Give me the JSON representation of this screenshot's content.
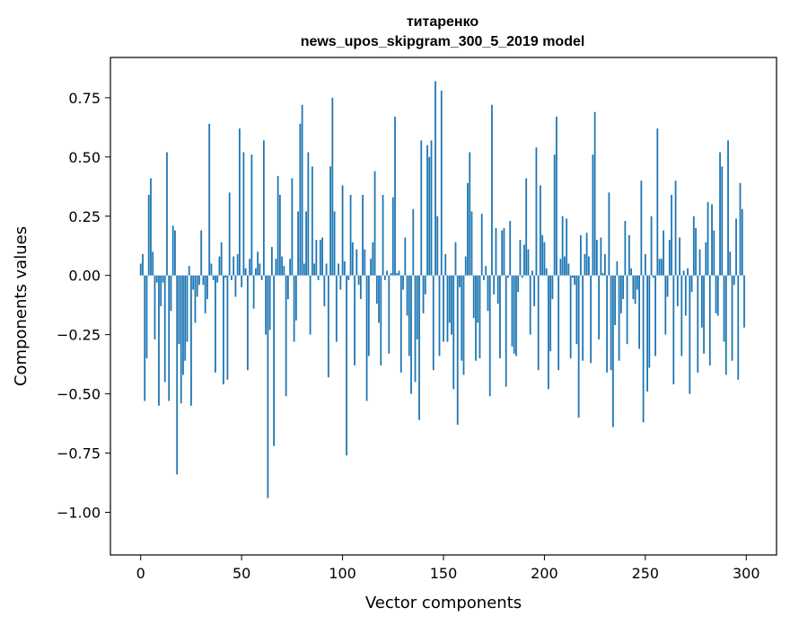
{
  "chart_data": {
    "type": "bar",
    "title_line1": "титаренко",
    "title_line2": "news_upos_skipgram_300_5_2019 model",
    "xlabel": "Vector components",
    "ylabel": "Components values",
    "xlim": [
      -15,
      315
    ],
    "ylim": [
      -1.18,
      0.92
    ],
    "xticks": [
      {
        "value": 0,
        "label": "0"
      },
      {
        "value": 50,
        "label": "50"
      },
      {
        "value": 100,
        "label": "100"
      },
      {
        "value": 150,
        "label": "150"
      },
      {
        "value": 200,
        "label": "200"
      },
      {
        "value": 250,
        "label": "250"
      },
      {
        "value": 300,
        "label": "300"
      }
    ],
    "yticks": [
      {
        "value": 0.75,
        "label": "0.75"
      },
      {
        "value": 0.5,
        "label": "0.50"
      },
      {
        "value": 0.25,
        "label": "0.25"
      },
      {
        "value": 0.0,
        "label": "0.00"
      },
      {
        "value": -0.25,
        "label": "−0.25"
      },
      {
        "value": -0.5,
        "label": "−0.50"
      },
      {
        "value": -0.75,
        "label": "−0.75"
      },
      {
        "value": -1.0,
        "label": "−1.00"
      }
    ],
    "bar_color": "#1f77b4",
    "grid": false,
    "values": [
      0.05,
      0.09,
      -0.53,
      -0.35,
      0.34,
      0.41,
      0.1,
      -0.27,
      -0.03,
      -0.55,
      -0.13,
      -0.03,
      -0.45,
      0.52,
      -0.53,
      -0.15,
      0.21,
      0.19,
      -0.84,
      -0.29,
      -0.54,
      -0.42,
      -0.36,
      -0.28,
      0.04,
      -0.55,
      -0.06,
      -0.2,
      -0.09,
      -0.04,
      0.19,
      -0.04,
      -0.16,
      -0.1,
      0.64,
      0.05,
      -0.02,
      -0.41,
      -0.03,
      0.08,
      0.14,
      -0.46,
      -0.01,
      -0.44,
      0.35,
      -0.02,
      0.08,
      -0.09,
      0.09,
      0.62,
      -0.05,
      0.52,
      0.03,
      -0.4,
      0.07,
      0.51,
      -0.14,
      0.03,
      0.1,
      0.05,
      -0.02,
      0.57,
      -0.25,
      -0.94,
      -0.23,
      0.12,
      -0.72,
      0.07,
      0.42,
      0.34,
      0.08,
      0.04,
      -0.51,
      -0.1,
      0.07,
      0.41,
      -0.28,
      -0.19,
      0.27,
      0.64,
      0.72,
      0.05,
      0.27,
      0.52,
      -0.25,
      0.46,
      0.05,
      0.15,
      -0.02,
      0.15,
      0.16,
      -0.13,
      0.05,
      -0.43,
      0.46,
      0.75,
      0.27,
      -0.28,
      0.05,
      -0.06,
      0.38,
      0.06,
      -0.76,
      -0.02,
      0.34,
      0.14,
      -0.38,
      0.11,
      -0.04,
      -0.1,
      0.34,
      0.11,
      -0.53,
      -0.34,
      0.07,
      0.14,
      0.44,
      -0.12,
      -0.2,
      -0.38,
      0.34,
      -0.02,
      0.02,
      -0.33,
      0.01,
      0.33,
      0.67,
      0.01,
      0.02,
      -0.41,
      -0.06,
      0.16,
      -0.17,
      -0.34,
      -0.5,
      0.28,
      -0.45,
      -0.27,
      -0.61,
      0.57,
      -0.16,
      -0.08,
      0.55,
      0.5,
      0.57,
      -0.4,
      0.82,
      0.25,
      -0.34,
      0.78,
      -0.28,
      0.09,
      -0.28,
      -0.2,
      -0.25,
      -0.48,
      0.14,
      -0.63,
      -0.05,
      -0.36,
      -0.42,
      0.08,
      0.39,
      0.52,
      0.27,
      -0.18,
      -0.36,
      -0.2,
      -0.35,
      0.26,
      -0.02,
      0.04,
      -0.15,
      -0.51,
      0.72,
      -0.08,
      0.2,
      -0.12,
      -0.35,
      0.19,
      0.2,
      -0.47,
      -0.01,
      0.23,
      -0.3,
      -0.33,
      -0.34,
      -0.07,
      0.15,
      -0.01,
      0.13,
      0.41,
      0.11,
      -0.25,
      0.02,
      -0.13,
      0.54,
      -0.4,
      0.38,
      0.17,
      0.14,
      0.03,
      -0.48,
      -0.32,
      -0.1,
      0.51,
      0.67,
      -0.4,
      0.07,
      0.25,
      0.08,
      0.24,
      0.05,
      -0.35,
      -0.01,
      -0.04,
      -0.29,
      -0.6,
      0.17,
      -0.36,
      0.09,
      0.18,
      0.08,
      -0.37,
      0.51,
      0.69,
      0.15,
      -0.27,
      0.16,
      0.01,
      0.09,
      -0.41,
      0.35,
      -0.4,
      -0.64,
      -0.21,
      0.06,
      -0.36,
      -0.16,
      -0.1,
      0.23,
      -0.29,
      0.17,
      0.03,
      -0.1,
      -0.12,
      -0.06,
      -0.31,
      0.4,
      -0.62,
      0.09,
      -0.49,
      -0.39,
      0.25,
      -0.01,
      -0.34,
      0.62,
      0.07,
      0.07,
      0.19,
      -0.25,
      -0.09,
      0.15,
      0.34,
      -0.46,
      0.4,
      -0.13,
      0.16,
      -0.34,
      0.02,
      -0.17,
      0.03,
      -0.5,
      -0.07,
      0.25,
      0.2,
      -0.41,
      0.11,
      -0.22,
      -0.33,
      0.14,
      0.31,
      -0.38,
      0.3,
      0.19,
      -0.16,
      -0.17,
      0.52,
      0.46,
      -0.28,
      -0.42,
      0.57,
      0.1,
      -0.36,
      -0.04,
      0.24,
      -0.44,
      0.39,
      0.28,
      -0.22
    ]
  }
}
